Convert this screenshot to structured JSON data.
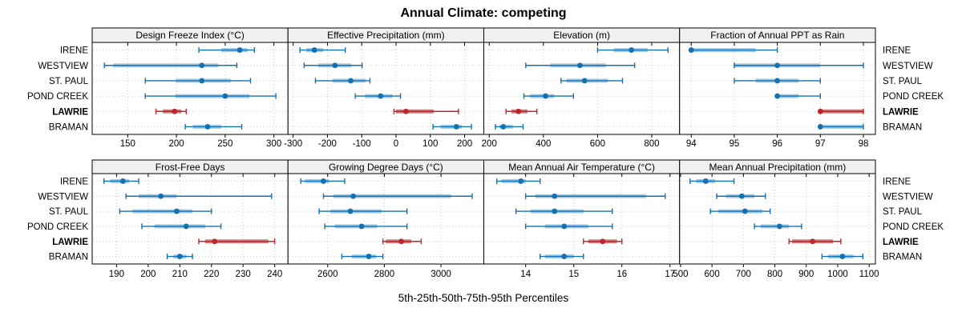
{
  "title": "Annual Climate: competing",
  "caption": "5th-25th-50th-75th-95th Percentiles",
  "sites": [
    "IRENE",
    "WESTVIEW",
    "ST. PAUL",
    "POND CREEK",
    "LAWRIE",
    "BRAMAN"
  ],
  "highlight_site": "LAWRIE",
  "percentile_labels": [
    "5th",
    "25th",
    "50th",
    "75th",
    "95th"
  ],
  "colors": {
    "normal": "#1371b0",
    "normal_band": "rgba(19,113,176,0.38)",
    "highlight": "#c02429",
    "highlight_band": "rgba(192,36,41,0.6)",
    "strip_bg": "#f0f0f0",
    "grid": "#c9c9c9",
    "border": "#000000"
  },
  "chart_data": [
    {
      "type": "dotplot-percentiles",
      "title": "Design Freeze Index (°C)",
      "grid_position": {
        "row": 0,
        "col": 0
      },
      "xlim": [
        113.5,
        314.5
      ],
      "ticks": [
        150,
        200,
        250,
        300
      ],
      "series": [
        {
          "name": "IRENE",
          "values": [
            223,
            246,
            265,
            273,
            280
          ]
        },
        {
          "name": "WESTVIEW",
          "values": [
            126,
            135,
            226,
            243,
            262
          ]
        },
        {
          "name": "ST. PAUL",
          "values": [
            168,
            199,
            226,
            256,
            276
          ]
        },
        {
          "name": "POND CREEK",
          "values": [
            168,
            199,
            250,
            275,
            302
          ]
        },
        {
          "name": "LAWRIE",
          "values": [
            179,
            186,
            198,
            205,
            210
          ]
        },
        {
          "name": "BRAMAN",
          "values": [
            209,
            217,
            232,
            246,
            267
          ]
        }
      ]
    },
    {
      "type": "dotplot-percentiles",
      "title": "Effective Precipitation (mm)",
      "grid_position": {
        "row": 0,
        "col": 1
      },
      "xlim": [
        -315,
        256
      ],
      "ticks": [
        -300,
        -200,
        -100,
        0,
        100,
        200
      ],
      "series": [
        {
          "name": "IRENE",
          "values": [
            -280,
            -262,
            -238,
            -212,
            -148
          ]
        },
        {
          "name": "WESTVIEW",
          "values": [
            -268,
            -227,
            -178,
            -130,
            -99
          ]
        },
        {
          "name": "ST. PAUL",
          "values": [
            -235,
            -185,
            -132,
            -88,
            -76
          ]
        },
        {
          "name": "POND CREEK",
          "values": [
            -119,
            -91,
            -45,
            -10,
            13
          ]
        },
        {
          "name": "LAWRIE",
          "values": [
            -6,
            0,
            29,
            110,
            182
          ]
        },
        {
          "name": "BRAMAN",
          "values": [
            108,
            130,
            176,
            192,
            220
          ]
        }
      ]
    },
    {
      "type": "dotplot-percentiles",
      "title": "Elevation (m)",
      "grid_position": {
        "row": 0,
        "col": 2
      },
      "xlim": [
        180,
        903
      ],
      "ticks": [
        200,
        400,
        600,
        800
      ],
      "series": [
        {
          "name": "IRENE",
          "values": [
            600,
            660,
            725,
            785,
            860
          ]
        },
        {
          "name": "WESTVIEW",
          "values": [
            335,
            425,
            535,
            630,
            737
          ]
        },
        {
          "name": "ST. PAUL",
          "values": [
            465,
            485,
            552,
            638,
            692
          ]
        },
        {
          "name": "POND CREEK",
          "values": [
            328,
            351,
            408,
            440,
            511
          ]
        },
        {
          "name": "LAWRIE",
          "values": [
            262,
            282,
            308,
            341,
            376
          ]
        },
        {
          "name": "BRAMAN",
          "values": [
            223,
            238,
            252,
            287,
            325
          ]
        }
      ]
    },
    {
      "type": "dotplot-percentiles",
      "title": "Fraction of Annual PPT as Rain",
      "grid_position": {
        "row": 0,
        "col": 3
      },
      "xlim": [
        93.73,
        98.28
      ],
      "ticks": [
        94,
        95,
        96,
        97,
        98
      ],
      "series": [
        {
          "name": "IRENE",
          "values": [
            94,
            94,
            94,
            95.5,
            96
          ]
        },
        {
          "name": "WESTVIEW",
          "values": [
            95,
            95,
            96,
            97,
            98
          ]
        },
        {
          "name": "ST. PAUL",
          "values": [
            95,
            95.5,
            96,
            96.5,
            97
          ]
        },
        {
          "name": "POND CREEK",
          "values": [
            96,
            96,
            96,
            96.5,
            97
          ]
        },
        {
          "name": "LAWRIE",
          "values": [
            97,
            97,
            97,
            98,
            98
          ]
        },
        {
          "name": "BRAMAN",
          "values": [
            97,
            97,
            97,
            98,
            98
          ]
        }
      ]
    },
    {
      "type": "dotplot-percentiles",
      "title": "Frost-Free Days",
      "grid_position": {
        "row": 1,
        "col": 0
      },
      "xlim": [
        182.3,
        244.2
      ],
      "ticks": [
        190,
        200,
        210,
        220,
        230,
        240
      ],
      "series": [
        {
          "name": "IRENE",
          "values": [
            186,
            188,
            192,
            194,
            197
          ]
        },
        {
          "name": "WESTVIEW",
          "values": [
            193,
            197,
            204,
            209,
            239
          ]
        },
        {
          "name": "ST. PAUL",
          "values": [
            191,
            195,
            209,
            214,
            220
          ]
        },
        {
          "name": "POND CREEK",
          "values": [
            198,
            202,
            212,
            218,
            223
          ]
        },
        {
          "name": "LAWRIE",
          "values": [
            216,
            218,
            221,
            238,
            240
          ]
        },
        {
          "name": "BRAMAN",
          "values": [
            206,
            208,
            210,
            212,
            214
          ]
        }
      ]
    },
    {
      "type": "dotplot-percentiles",
      "title": "Growing Degree Days (°C)",
      "grid_position": {
        "row": 1,
        "col": 1
      },
      "xlim": [
        2460,
        3151
      ],
      "ticks": [
        2600,
        2800,
        3000
      ],
      "series": [
        {
          "name": "IRENE",
          "values": [
            2505,
            2520,
            2585,
            2605,
            2660
          ]
        },
        {
          "name": "WESTVIEW",
          "values": [
            2585,
            2620,
            2690,
            3035,
            3110
          ]
        },
        {
          "name": "ST. PAUL",
          "values": [
            2570,
            2610,
            2680,
            2790,
            2880
          ]
        },
        {
          "name": "POND CREEK",
          "values": [
            2590,
            2625,
            2720,
            2775,
            2880
          ]
        },
        {
          "name": "LAWRIE",
          "values": [
            2795,
            2805,
            2860,
            2895,
            2930
          ]
        },
        {
          "name": "BRAMAN",
          "values": [
            2650,
            2685,
            2745,
            2770,
            2795
          ]
        }
      ]
    },
    {
      "type": "dotplot-percentiles",
      "title": "Mean Annual Air Temperature (°C)",
      "grid_position": {
        "row": 1,
        "col": 2
      },
      "xlim": [
        13.13,
        17.2
      ],
      "ticks": [
        14,
        15,
        16,
        17
      ],
      "series": [
        {
          "name": "IRENE",
          "values": [
            13.4,
            13.5,
            13.9,
            14.0,
            14.3
          ]
        },
        {
          "name": "WESTVIEW",
          "values": [
            14.0,
            14.2,
            14.6,
            16.5,
            16.9
          ]
        },
        {
          "name": "ST. PAUL",
          "values": [
            13.8,
            14.1,
            14.6,
            15.2,
            15.8
          ]
        },
        {
          "name": "POND CREEK",
          "values": [
            14.0,
            14.4,
            14.8,
            15.3,
            15.8
          ]
        },
        {
          "name": "LAWRIE",
          "values": [
            15.2,
            15.3,
            15.6,
            15.9,
            16.0
          ]
        },
        {
          "name": "BRAMAN",
          "values": [
            14.3,
            14.4,
            14.8,
            15.0,
            15.2
          ]
        }
      ]
    },
    {
      "type": "dotplot-percentiles",
      "title": "Mean Annual Precipitation (mm)",
      "grid_position": {
        "row": 1,
        "col": 3
      },
      "xlim": [
        497,
        1120
      ],
      "ticks": [
        500,
        600,
        700,
        800,
        900,
        1000,
        1100
      ],
      "series": [
        {
          "name": "IRENE",
          "values": [
            530,
            550,
            580,
            610,
            670
          ]
        },
        {
          "name": "WESTVIEW",
          "values": [
            615,
            645,
            695,
            735,
            770
          ]
        },
        {
          "name": "ST. PAUL",
          "values": [
            595,
            620,
            705,
            760,
            785
          ]
        },
        {
          "name": "POND CREEK",
          "values": [
            735,
            755,
            815,
            845,
            885
          ]
        },
        {
          "name": "LAWRIE",
          "values": [
            845,
            855,
            920,
            985,
            1010
          ]
        },
        {
          "name": "BRAMAN",
          "values": [
            950,
            970,
            1015,
            1050,
            1080
          ]
        }
      ]
    }
  ]
}
